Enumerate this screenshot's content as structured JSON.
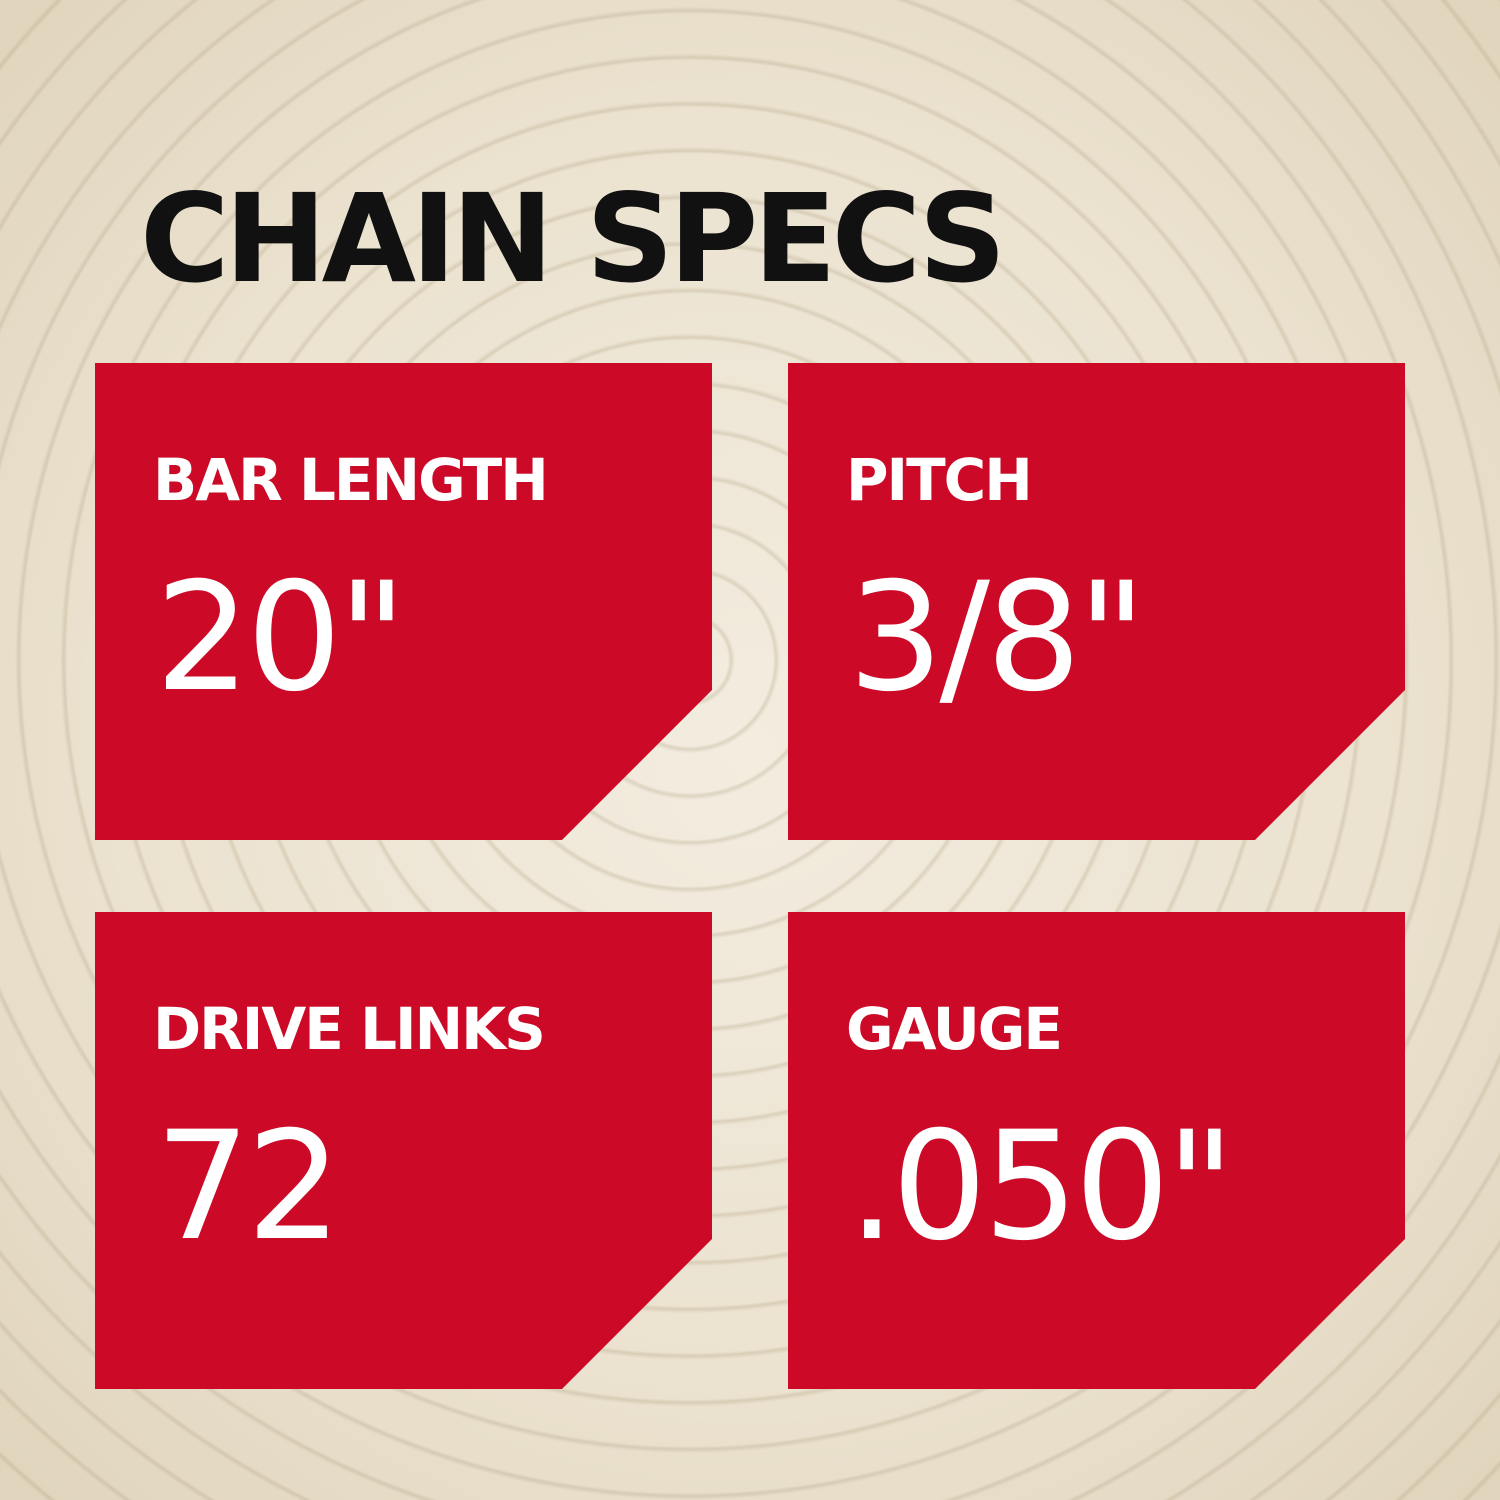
{
  "title": "CHAIN SPECS",
  "accent_color": "#cc0a27",
  "specs": [
    {
      "label": "BAR LENGTH",
      "value": "20\""
    },
    {
      "label": "PITCH",
      "value": "3/8\""
    },
    {
      "label": "DRIVE LINKS",
      "value": "72"
    },
    {
      "label": "GAUGE",
      "value": ".050\""
    }
  ]
}
